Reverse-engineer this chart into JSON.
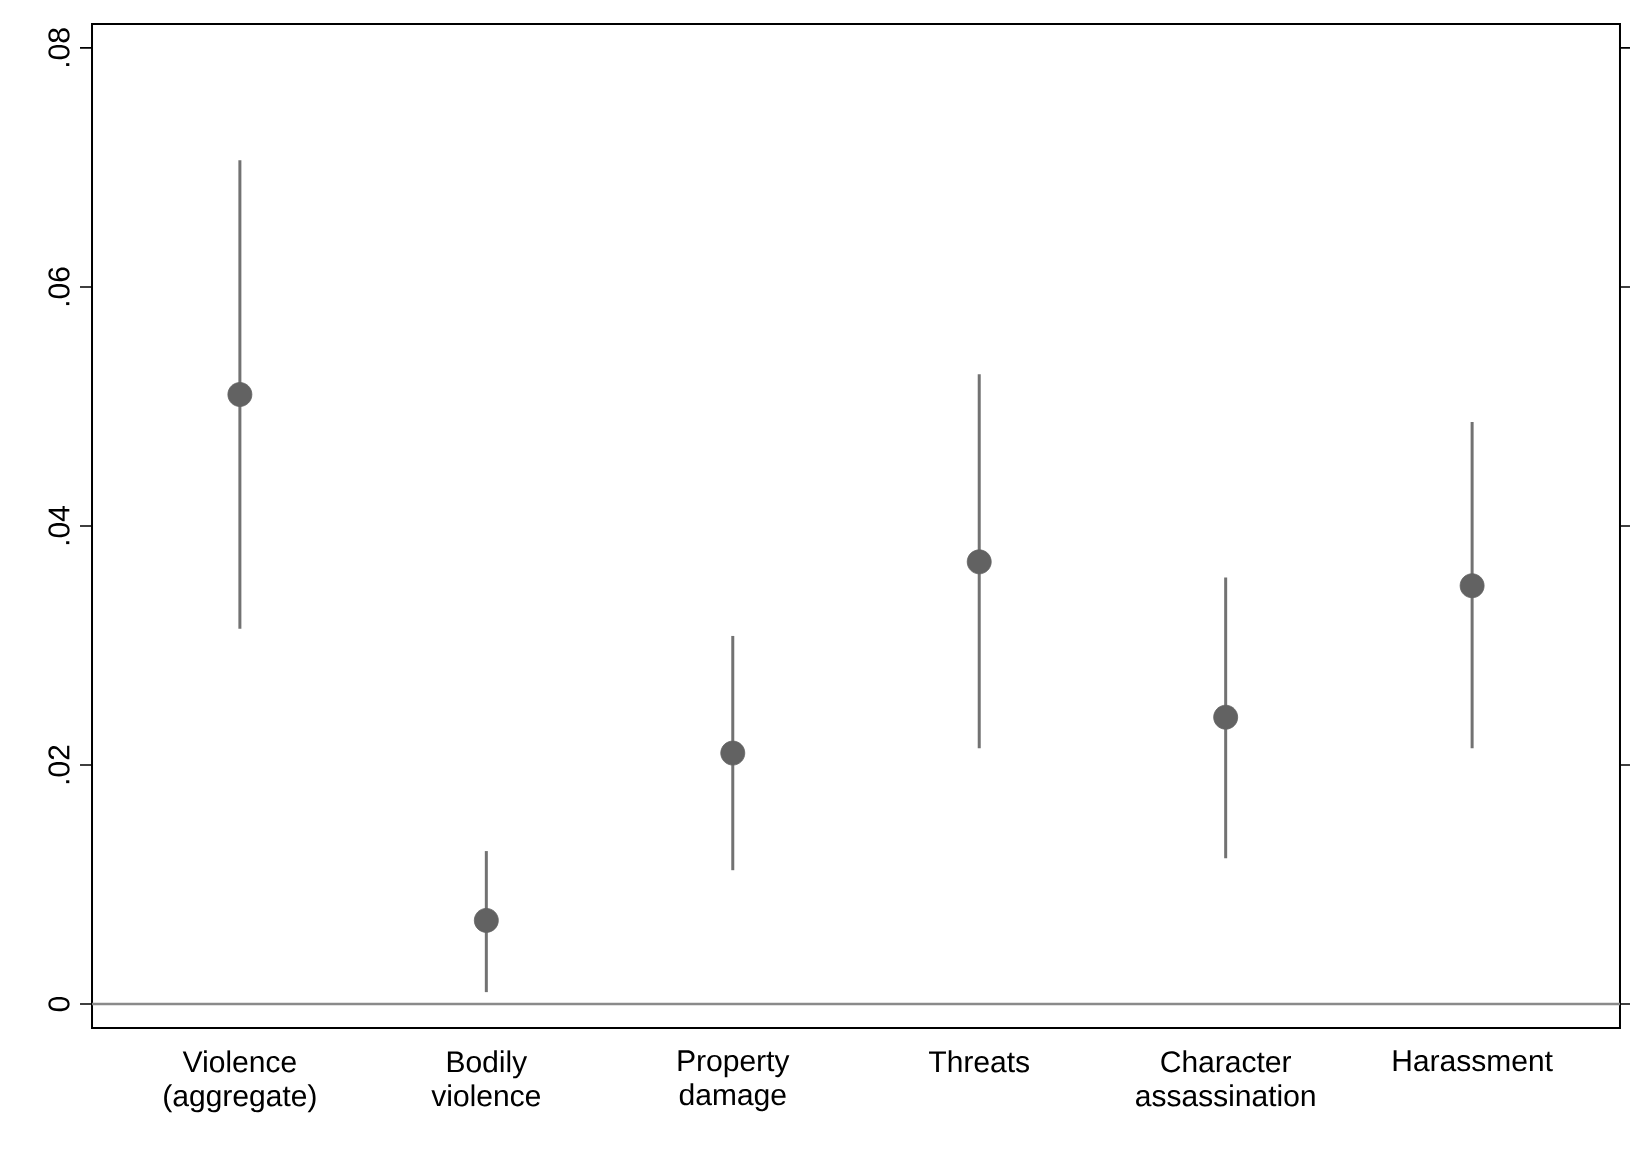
{
  "chart_data": {
    "type": "scatter",
    "marker": "circle",
    "color": "#626262",
    "categories": [
      "Violence (aggregate)",
      "Bodily violence",
      "Property damage",
      "Threats",
      "Character assassination",
      "Harassment"
    ],
    "values": [
      0.051,
      0.007,
      0.021,
      0.037,
      0.024,
      0.035
    ],
    "errors": [
      [
        0.0314,
        0.0706
      ],
      [
        0.001,
        0.0128
      ],
      [
        0.0112,
        0.0308
      ],
      [
        0.0214,
        0.0527
      ],
      [
        0.0122,
        0.0357
      ],
      [
        0.0214,
        0.0487
      ]
    ],
    "ylim": [
      -0.002,
      0.082
    ],
    "yticks": [
      0,
      {
        "value": 0.02,
        "label": ".02"
      },
      {
        "value": 0.04,
        "label": ".04"
      },
      {
        "value": 0.06,
        "label": ".06"
      },
      {
        "value": 0.08,
        "label": ".08"
      }
    ],
    "ref_lines": [
      {
        "axis": "y",
        "value": 0,
        "color": "#8a8a8a"
      }
    ]
  }
}
